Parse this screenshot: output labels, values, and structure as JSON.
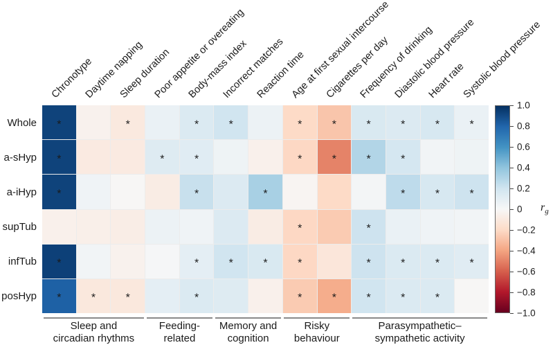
{
  "chart_data": {
    "type": "heatmap",
    "title": "",
    "rows": [
      "Whole",
      "a-sHyp",
      "a-iHyp",
      "supTub",
      "infTub",
      "posHyp"
    ],
    "columns": [
      "Chronotype",
      "Daytime napping",
      "Sleep duration",
      "Poor appetite or overeating",
      "Body-mass index",
      "Incorrect matches",
      "Reaction time",
      "Age at first sexual intercourse",
      "Cigarettes per day",
      "Frequency of drinking",
      "Diastolic blood pressure",
      "Heart rate",
      "Systolic blood pressure"
    ],
    "values": [
      [
        0.93,
        -0.04,
        -0.1,
        0.07,
        0.15,
        0.2,
        0.06,
        -0.2,
        -0.28,
        0.16,
        0.14,
        0.17,
        0.07
      ],
      [
        0.93,
        -0.09,
        -0.09,
        0.13,
        0.12,
        0.05,
        -0.05,
        -0.21,
        -0.5,
        0.3,
        0.18,
        0.03,
        0.05
      ],
      [
        0.93,
        0.04,
        -0.01,
        -0.08,
        0.23,
        0.14,
        0.33,
        -0.02,
        -0.2,
        0.02,
        0.26,
        0.17,
        0.21
      ],
      [
        -0.05,
        -0.06,
        -0.07,
        0.06,
        0.04,
        0.14,
        -0.08,
        -0.21,
        -0.26,
        0.21,
        0.07,
        0.04,
        0.03
      ],
      [
        0.94,
        0.03,
        -0.04,
        0.01,
        0.1,
        0.2,
        0.16,
        -0.21,
        -0.12,
        0.21,
        0.15,
        0.15,
        0.12
      ],
      [
        0.82,
        -0.11,
        -0.11,
        0.1,
        0.15,
        0.13,
        -0.05,
        -0.26,
        -0.37,
        0.2,
        0.15,
        0.15,
        -0.01
      ]
    ],
    "significant": [
      [
        1,
        0,
        1,
        0,
        1,
        1,
        0,
        1,
        1,
        1,
        1,
        1,
        1
      ],
      [
        1,
        0,
        0,
        1,
        1,
        0,
        0,
        1,
        1,
        1,
        1,
        0,
        0
      ],
      [
        1,
        0,
        0,
        0,
        1,
        0,
        1,
        0,
        0,
        0,
        1,
        1,
        1
      ],
      [
        0,
        0,
        0,
        0,
        0,
        0,
        0,
        1,
        0,
        1,
        0,
        0,
        0
      ],
      [
        1,
        0,
        0,
        0,
        1,
        1,
        1,
        1,
        0,
        1,
        1,
        1,
        1
      ],
      [
        1,
        1,
        1,
        0,
        1,
        0,
        0,
        1,
        1,
        1,
        1,
        1,
        0
      ]
    ],
    "significance_marker": "*",
    "groups": [
      {
        "label_lines": [
          "Sleep and",
          "circadian rhythms"
        ],
        "start": 0,
        "end": 2
      },
      {
        "label_lines": [
          "Feeding-",
          "related"
        ],
        "start": 3,
        "end": 4
      },
      {
        "label_lines": [
          "Memory and",
          "cognition"
        ],
        "start": 5,
        "end": 6
      },
      {
        "label_lines": [
          "Risky",
          "behaviour"
        ],
        "start": 7,
        "end": 8
      },
      {
        "label_lines": [
          "Parasympathetic–",
          "sympathetic activity"
        ],
        "start": 9,
        "end": 12
      }
    ],
    "colorbar": {
      "label_main": "r",
      "label_sub": "g",
      "range": [
        -1,
        1
      ],
      "colormap": "RdBu",
      "ticks": [
        {
          "value": 1.0,
          "label": "1.0"
        },
        {
          "value": 0.8,
          "label": "0.8"
        },
        {
          "value": 0.6,
          "label": "0.6"
        },
        {
          "value": 0.4,
          "label": "0.4"
        },
        {
          "value": 0.2,
          "label": "0.2"
        },
        {
          "value": 0.0,
          "label": "0"
        },
        {
          "value": -0.2,
          "label": "−0.2"
        },
        {
          "value": -0.4,
          "label": "−0.4"
        },
        {
          "value": -0.6,
          "label": "−0.6"
        },
        {
          "value": -0.8,
          "label": "−0.8"
        },
        {
          "value": -1.0,
          "label": "−1.0"
        }
      ],
      "stops": [
        {
          "value": -1.0,
          "color": "#67001f"
        },
        {
          "value": -0.8,
          "color": "#b2182b"
        },
        {
          "value": -0.6,
          "color": "#d6604d"
        },
        {
          "value": -0.4,
          "color": "#f4a582"
        },
        {
          "value": -0.2,
          "color": "#fddbc7"
        },
        {
          "value": 0.0,
          "color": "#f7f7f7"
        },
        {
          "value": 0.2,
          "color": "#d1e5f0"
        },
        {
          "value": 0.4,
          "color": "#92c5de"
        },
        {
          "value": 0.6,
          "color": "#4393c3"
        },
        {
          "value": 0.8,
          "color": "#2166ac"
        },
        {
          "value": 1.0,
          "color": "#053061"
        }
      ]
    },
    "style": {
      "cell_gap_color": "#ececec",
      "text_color": "#1a1a1a",
      "group_line_color": "#8a8a8a"
    },
    "legend_position": "right",
    "grid_on": false
  }
}
